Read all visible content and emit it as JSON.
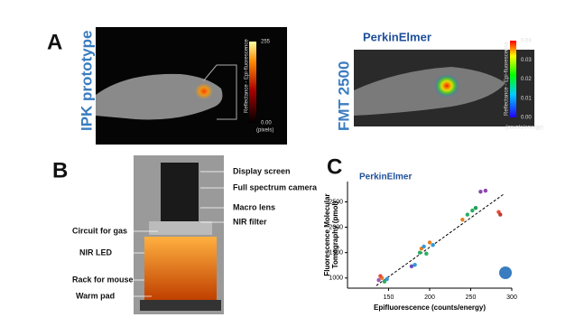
{
  "panel_a": {
    "label": "A",
    "left": {
      "title": "IPK prototype",
      "colorbar_title": "Reflectance - Epi-fluorescence",
      "colorbar_max": "255",
      "colorbar_min": "0.00",
      "colorbar_unit": "(pixels)"
    },
    "right": {
      "title": "FMT 2500",
      "logo": "PerkinElmer",
      "colorbar_title": "Reflectance - Epi-fluorescence",
      "colorbar_ticks": [
        "0.04",
        "0.03",
        "0.02",
        "0.01",
        "0.00"
      ],
      "colorbar_unit": "(counts/energy)"
    }
  },
  "panel_b": {
    "label": "B",
    "annotations": [
      "Display screen",
      "Full spectrum camera",
      "Macro lens",
      "NIR filter",
      "Circuit for gas",
      "NIR LED",
      "Rack for mouse",
      "Warm pad"
    ]
  },
  "chart_data": {
    "type": "scatter",
    "panel_label": "C",
    "logo": "PerkinElmer",
    "x_label": "Epifluorescence (counts/energy)",
    "y_label": [
      "Fluorescence Molecular",
      "Tomography (pmol)"
    ],
    "x": [
      138,
      142,
      145,
      148,
      140,
      178,
      182,
      188,
      190,
      193,
      196,
      200,
      204,
      240,
      246,
      252,
      256,
      262,
      268,
      284,
      286
    ],
    "values": [
      960,
      1000,
      930,
      980,
      1040,
      1230,
      1260,
      1500,
      1580,
      1620,
      1480,
      1700,
      1650,
      2150,
      2250,
      2330,
      2380,
      2700,
      2720,
      2300,
      2250
    ],
    "colors": [
      "#9b59b6",
      "#e67e22",
      "#27ae60",
      "#3498db",
      "#e74c3c",
      "#6a4fc0",
      "#3498db",
      "#27ae60",
      "#e67e22",
      "#3498db",
      "#27ae60",
      "#e67e22",
      "#3498db",
      "#e67e22",
      "#27ae60",
      "#27ae60",
      "#1f9d55",
      "#8e44ad",
      "#8e44ad",
      "#e74c3c",
      "#c0392b"
    ],
    "trendline": {
      "x": [
        135,
        290
      ],
      "y": [
        850,
        2650
      ]
    },
    "xlim": [
      100,
      300
    ],
    "xticks": [
      150,
      200,
      250,
      300
    ],
    "ylim": [
      800,
      2900
    ],
    "yticks": [
      1000,
      1500,
      2000,
      2500
    ]
  }
}
